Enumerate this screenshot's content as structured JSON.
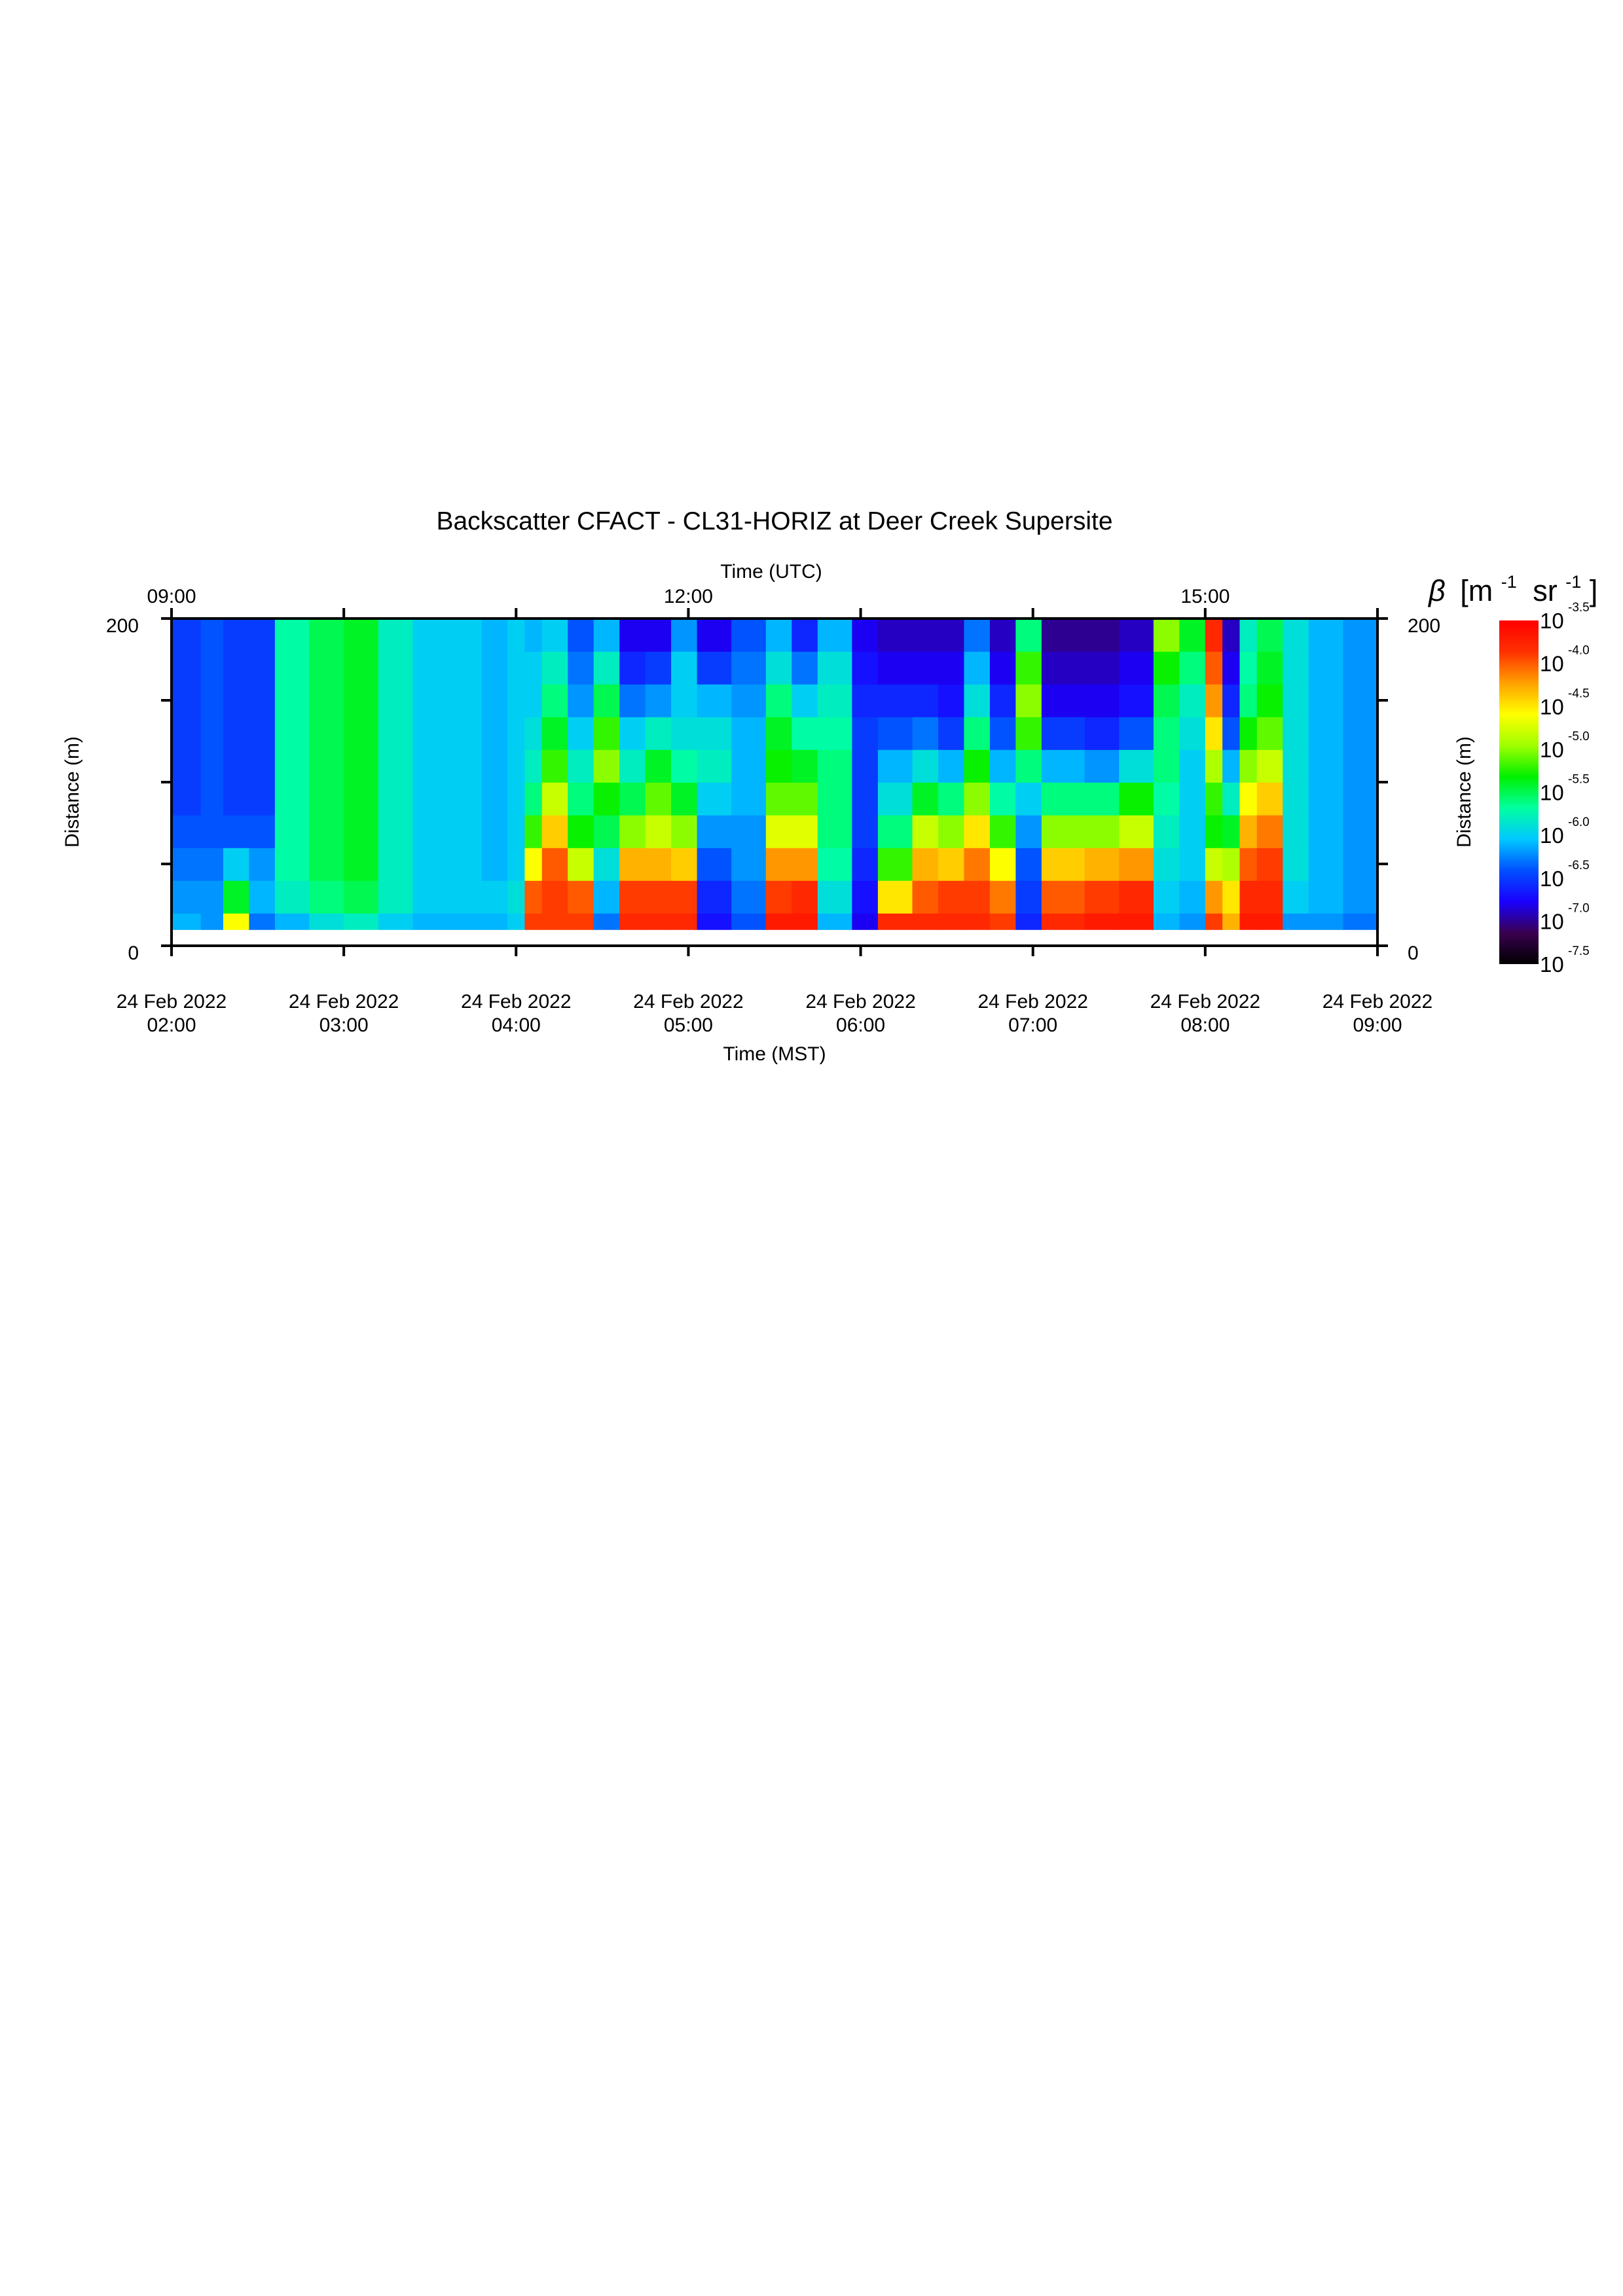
{
  "chart_data": {
    "type": "heatmap",
    "title": "Backscatter CFACT - CL31-HORIZ at Deer Creek Supersite",
    "xlabel_bottom": "Time (MST)",
    "xlabel_top": "Time (UTC)",
    "ylabel": "Distance (m)",
    "ylim": [
      0,
      200
    ],
    "y_ticks": [
      0,
      50,
      100,
      150,
      200
    ],
    "y_tick_labels": [
      {
        "value": 0,
        "label": "0"
      },
      {
        "value": 200,
        "label": "200"
      }
    ],
    "xlim_hours_mst": [
      2,
      9
    ],
    "x_ticks_bottom": [
      {
        "hour": 2,
        "line1": "24 Feb 2022",
        "line2": "02:00"
      },
      {
        "hour": 3,
        "line1": "24 Feb 2022",
        "line2": "03:00"
      },
      {
        "hour": 4,
        "line1": "24 Feb 2022",
        "line2": "04:00"
      },
      {
        "hour": 5,
        "line1": "24 Feb 2022",
        "line2": "05:00"
      },
      {
        "hour": 6,
        "line1": "24 Feb 2022",
        "line2": "06:00"
      },
      {
        "hour": 7,
        "line1": "24 Feb 2022",
        "line2": "07:00"
      },
      {
        "hour": 8,
        "line1": "24 Feb 2022",
        "line2": "08:00"
      },
      {
        "hour": 9,
        "line1": "24 Feb 2022",
        "line2": "09:00"
      }
    ],
    "x_ticks_top": [
      {
        "hour_mst": 2,
        "label": "09:00"
      },
      {
        "hour_mst": 5,
        "label": "12:00"
      },
      {
        "hour_mst": 8,
        "label": "15:00"
      }
    ],
    "colorbar": {
      "label": "β [m-1 sr-1]",
      "label_symbol": "β",
      "label_unit1": "[m",
      "label_exp1": "-1",
      "label_unit2": "sr",
      "label_exp2": "-1",
      "label_close": "]",
      "scale": "log",
      "range_log10": [
        -7.5,
        -3.5
      ],
      "tick_base": "10",
      "ticks": [
        "-3.5",
        "-4.0",
        "-4.5",
        "-5.0",
        "-5.5",
        "-6.0",
        "-6.5",
        "-7.0",
        "-7.5"
      ],
      "colors": [
        "#000000",
        "#3a0050",
        "#1a00ff",
        "#0050ff",
        "#00c8ff",
        "#00ffa0",
        "#00f000",
        "#a0ff00",
        "#ffff00",
        "#ffa000",
        "#ff3000",
        "#ff0000"
      ]
    },
    "time_bins_mst_hour": [
      2.0,
      2.17,
      2.3,
      2.45,
      2.6,
      2.8,
      3.0,
      3.2,
      3.4,
      3.6,
      3.8,
      3.95,
      4.05,
      4.15,
      4.3,
      4.45,
      4.6,
      4.75,
      4.9,
      5.05,
      5.25,
      5.45,
      5.6,
      5.75,
      5.95,
      6.1,
      6.3,
      6.45,
      6.6,
      6.75,
      6.9,
      7.05,
      7.3,
      7.5,
      7.7,
      7.85,
      8.0,
      8.1,
      8.2,
      8.3,
      8.45,
      8.6,
      8.8,
      9.0
    ],
    "distance_bins_m": [
      10,
      30,
      50,
      70,
      90,
      110,
      130,
      150,
      170,
      190
    ],
    "log10_beta": [
      [
        -6.1,
        -6.2,
        -6.3,
        -6.4,
        -6.5,
        -6.5,
        -6.5,
        -6.5,
        -6.5,
        -6.5
      ],
      [
        -6.2,
        -6.2,
        -6.3,
        -6.4,
        -6.4,
        -6.4,
        -6.4,
        -6.4,
        -6.4,
        -6.4
      ],
      [
        -4.6,
        -5.4,
        -6.0,
        -6.4,
        -6.5,
        -6.5,
        -6.5,
        -6.5,
        -6.5,
        -6.5
      ],
      [
        -6.3,
        -6.1,
        -6.2,
        -6.4,
        -6.5,
        -6.5,
        -6.5,
        -6.5,
        -6.5,
        -6.5
      ],
      [
        -6.1,
        -5.8,
        -5.7,
        -5.7,
        -5.7,
        -5.7,
        -5.7,
        -5.7,
        -5.7,
        -5.7
      ],
      [
        -5.9,
        -5.6,
        -5.5,
        -5.5,
        -5.5,
        -5.5,
        -5.5,
        -5.5,
        -5.5,
        -5.5
      ],
      [
        -5.8,
        -5.5,
        -5.4,
        -5.4,
        -5.4,
        -5.4,
        -5.4,
        -5.4,
        -5.4,
        -5.4
      ],
      [
        -6.0,
        -5.8,
        -5.8,
        -5.8,
        -5.8,
        -5.8,
        -5.8,
        -5.8,
        -5.8,
        -5.8
      ],
      [
        -6.1,
        -6.0,
        -6.0,
        -6.0,
        -6.0,
        -6.0,
        -6.0,
        -6.0,
        -6.0,
        -6.0
      ],
      [
        -6.1,
        -6.0,
        -6.0,
        -6.0,
        -6.0,
        -6.0,
        -6.0,
        -6.0,
        -6.0,
        -6.0
      ],
      [
        -6.1,
        -6.0,
        -6.1,
        -6.1,
        -6.1,
        -6.1,
        -6.1,
        -6.1,
        -6.1,
        -6.1
      ],
      [
        -6.0,
        -5.9,
        -6.0,
        -6.0,
        -6.0,
        -6.0,
        -6.0,
        -6.0,
        -6.0,
        -6.0
      ],
      [
        -3.9,
        -4.0,
        -4.6,
        -5.2,
        -5.6,
        -5.8,
        -5.9,
        -6.0,
        -6.0,
        -6.1
      ],
      [
        -3.9,
        -3.9,
        -4.0,
        -4.4,
        -4.8,
        -5.2,
        -5.4,
        -5.6,
        -5.8,
        -6.0
      ],
      [
        -3.9,
        -4.0,
        -4.8,
        -5.3,
        -5.6,
        -5.8,
        -6.0,
        -6.2,
        -6.3,
        -6.4
      ],
      [
        -6.3,
        -6.1,
        -5.9,
        -5.5,
        -5.3,
        -5.0,
        -5.2,
        -5.5,
        -5.8,
        -6.1
      ],
      [
        -3.8,
        -3.9,
        -4.3,
        -5.0,
        -5.5,
        -5.8,
        -6.0,
        -6.3,
        -6.6,
        -6.8
      ],
      [
        -3.8,
        -3.9,
        -4.3,
        -4.8,
        -5.1,
        -5.4,
        -5.8,
        -6.2,
        -6.5,
        -6.8
      ],
      [
        -3.8,
        -3.9,
        -4.4,
        -5.0,
        -5.4,
        -5.7,
        -5.9,
        -6.0,
        -6.0,
        -6.2
      ],
      [
        -6.7,
        -6.6,
        -6.4,
        -6.2,
        -6.0,
        -5.8,
        -5.9,
        -6.1,
        -6.5,
        -6.8
      ],
      [
        -6.4,
        -6.3,
        -6.2,
        -6.2,
        -6.1,
        -6.1,
        -6.1,
        -6.2,
        -6.3,
        -6.4
      ],
      [
        -3.7,
        -3.9,
        -4.2,
        -4.7,
        -5.1,
        -5.3,
        -5.4,
        -5.6,
        -5.9,
        -6.1
      ],
      [
        -3.7,
        -3.8,
        -4.2,
        -4.7,
        -5.1,
        -5.4,
        -5.7,
        -6.0,
        -6.3,
        -6.6
      ],
      [
        -6.1,
        -5.9,
        -5.7,
        -5.6,
        -5.6,
        -5.6,
        -5.7,
        -5.8,
        -5.9,
        -6.1
      ],
      [
        -6.8,
        -6.7,
        -6.6,
        -6.5,
        -6.5,
        -6.5,
        -6.5,
        -6.6,
        -6.7,
        -6.8
      ],
      [
        -3.8,
        -4.5,
        -5.2,
        -5.6,
        -5.9,
        -6.1,
        -6.4,
        -6.6,
        -6.8,
        -6.9
      ],
      [
        -3.8,
        -4.0,
        -4.3,
        -4.8,
        -5.4,
        -5.9,
        -6.3,
        -6.6,
        -6.8,
        -6.9
      ],
      [
        -3.8,
        -3.9,
        -4.4,
        -5.0,
        -5.6,
        -6.1,
        -6.5,
        -6.7,
        -6.8,
        -6.9
      ],
      [
        -3.8,
        -3.9,
        -4.1,
        -4.5,
        -5.0,
        -5.3,
        -5.6,
        -5.9,
        -6.1,
        -6.3
      ],
      [
        -3.9,
        -4.1,
        -4.6,
        -5.2,
        -5.7,
        -6.1,
        -6.4,
        -6.6,
        -6.8,
        -6.9
      ],
      [
        -6.6,
        -6.5,
        -6.4,
        -6.2,
        -6.0,
        -5.6,
        -5.2,
        -5.0,
        -5.2,
        -5.6
      ],
      [
        -3.8,
        -4.0,
        -4.4,
        -5.0,
        -5.6,
        -6.1,
        -6.5,
        -6.8,
        -6.9,
        -7.0
      ],
      [
        -3.7,
        -3.9,
        -4.3,
        -5.0,
        -5.6,
        -6.2,
        -6.6,
        -6.8,
        -6.9,
        -7.0
      ],
      [
        -3.7,
        -3.8,
        -4.2,
        -4.8,
        -5.3,
        -5.9,
        -6.4,
        -6.7,
        -6.8,
        -6.9
      ],
      [
        -6.1,
        -6.0,
        -5.9,
        -5.8,
        -5.7,
        -5.6,
        -5.6,
        -5.5,
        -5.3,
        -5.0
      ],
      [
        -6.2,
        -6.1,
        -6.0,
        -6.0,
        -6.0,
        -6.0,
        -5.9,
        -5.8,
        -5.6,
        -5.4
      ],
      [
        -3.9,
        -4.2,
        -4.8,
        -5.3,
        -5.2,
        -4.9,
        -4.5,
        -4.2,
        -4.0,
        -3.8
      ],
      [
        -4.3,
        -4.5,
        -4.9,
        -5.4,
        -5.8,
        -6.1,
        -6.4,
        -6.6,
        -6.8,
        -6.9
      ],
      [
        -3.7,
        -3.8,
        -4.0,
        -4.3,
        -4.6,
        -5.0,
        -5.3,
        -5.6,
        -5.7,
        -5.8
      ],
      [
        -3.7,
        -3.8,
        -3.9,
        -4.1,
        -4.4,
        -4.8,
        -5.1,
        -5.3,
        -5.4,
        -5.5
      ],
      [
        -6.2,
        -6.0,
        -5.9,
        -5.9,
        -5.9,
        -5.9,
        -5.9,
        -5.9,
        -5.9,
        -5.9
      ],
      [
        -6.2,
        -6.1,
        -6.1,
        -6.1,
        -6.1,
        -6.1,
        -6.1,
        -6.1,
        -6.1,
        -6.1
      ],
      [
        -6.3,
        -6.2,
        -6.2,
        -6.2,
        -6.2,
        -6.2,
        -6.2,
        -6.2,
        -6.2,
        -6.2
      ],
      [
        -6.3,
        -6.2,
        -6.2,
        -6.2,
        -6.2,
        -6.2,
        -6.2,
        -6.2,
        -6.2,
        -6.2
      ]
    ]
  }
}
